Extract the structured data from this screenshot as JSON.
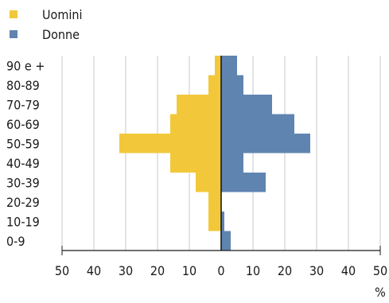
{
  "chart_data": {
    "type": "bar",
    "orientation": "horizontal-population-pyramid",
    "categories": [
      "90 e +",
      "80-89",
      "70-79",
      "60-69",
      "50-59",
      "40-49",
      "30-39",
      "20-29",
      "10-19",
      "0-9"
    ],
    "series": [
      {
        "name": "Uomini",
        "color": "#f2c83a",
        "values": [
          2,
          4,
          14,
          16,
          32,
          16,
          8,
          4,
          4,
          0
        ]
      },
      {
        "name": "Donne",
        "color": "#5f84b0",
        "values": [
          5,
          7,
          16,
          23,
          28,
          7,
          14,
          0,
          1,
          3
        ]
      }
    ],
    "xticks": [
      "50",
      "40",
      "30",
      "20",
      "10",
      "0",
      "10",
      "20",
      "30",
      "40",
      "50"
    ],
    "xunit": "%",
    "xlim": [
      -50,
      50
    ],
    "grid": true,
    "legend_position": "top-left"
  }
}
